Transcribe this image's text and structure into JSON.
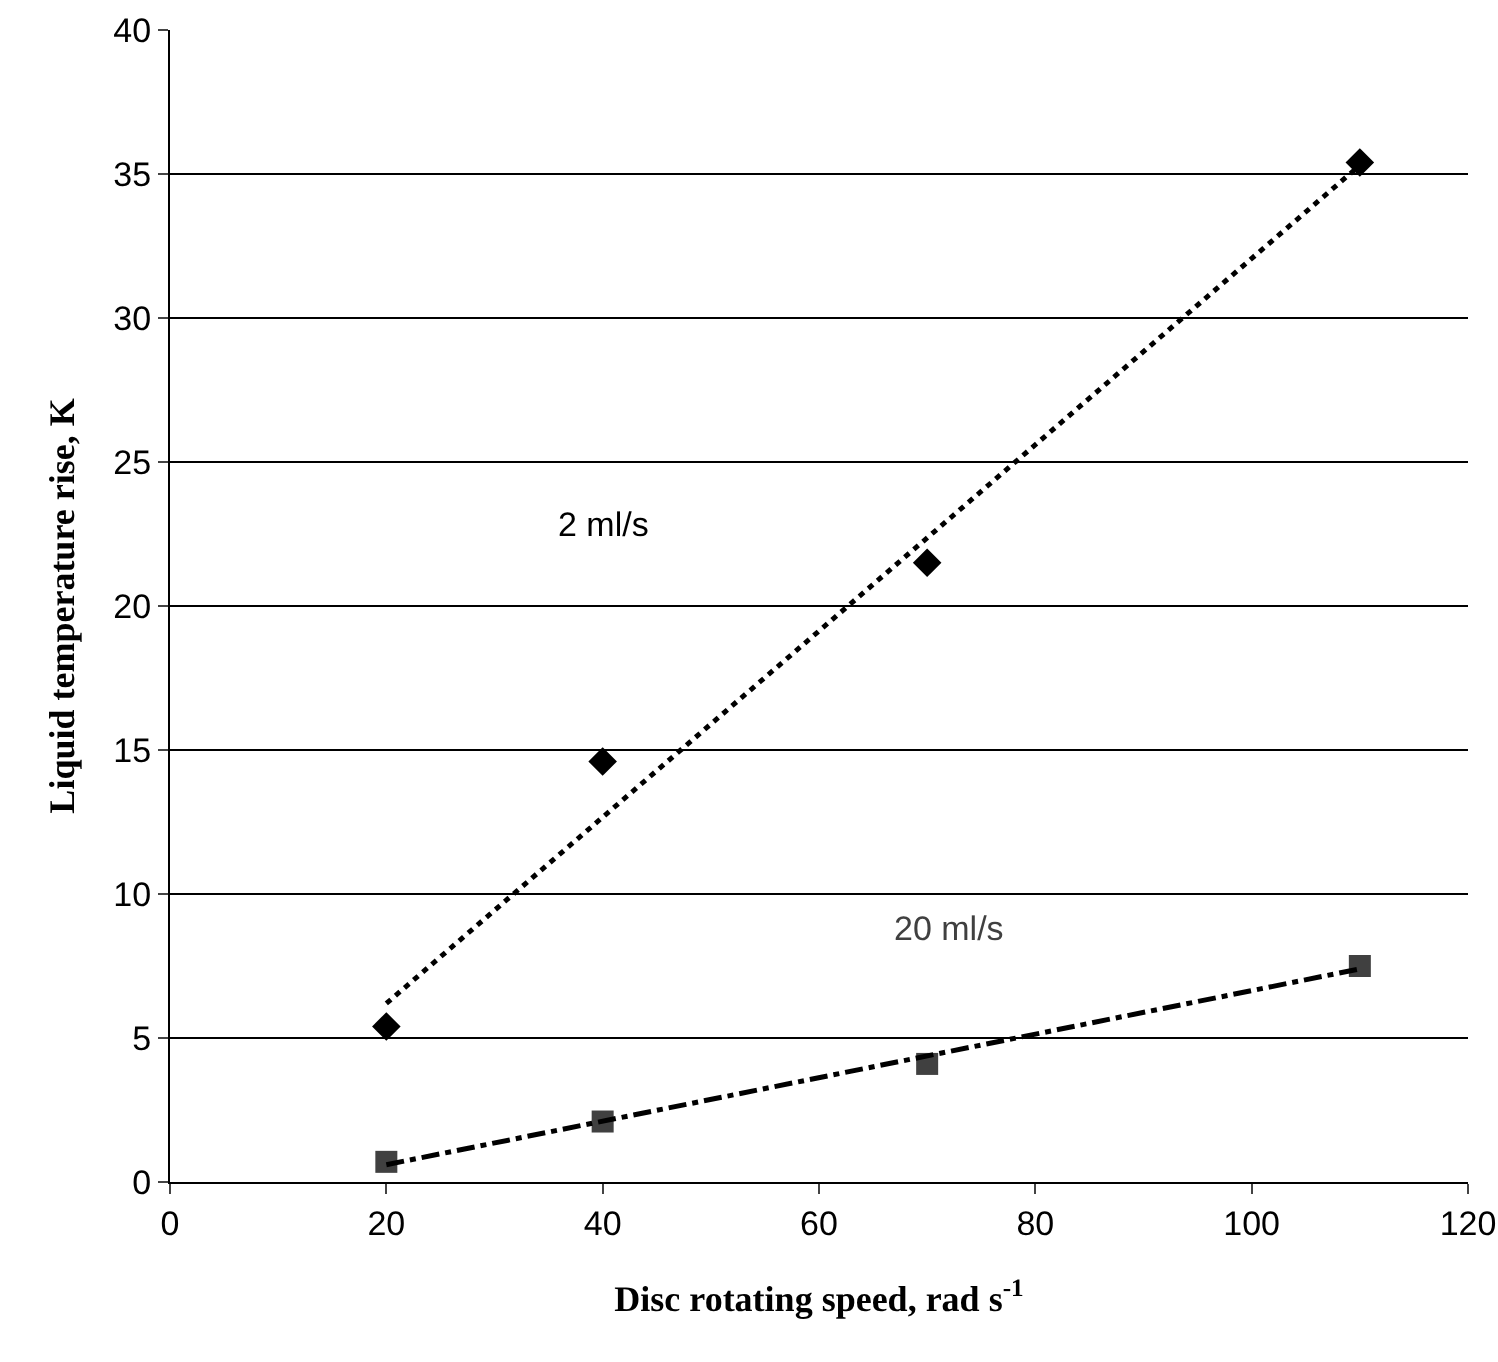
{
  "chart_data": {
    "type": "scatter",
    "xlabel": "Disc rotating speed, rad s$^{-1}$",
    "ylabel": "Liquid temperature rise, K",
    "xlim": [
      0,
      120
    ],
    "xticks": [
      0,
      20,
      40,
      60,
      80,
      100,
      120
    ],
    "ylim": [
      0,
      40
    ],
    "yticks": [
      0,
      5,
      10,
      15,
      20,
      25,
      30,
      35,
      40
    ],
    "grid": "y",
    "legend": false,
    "series": [
      {
        "name": "2 ml/s",
        "marker": "diamond",
        "color": "#000000",
        "x": [
          20,
          40,
          70,
          110
        ],
        "values": [
          5.4,
          14.6,
          21.5,
          35.4
        ]
      },
      {
        "name": "20 ml/s",
        "marker": "square",
        "color": "#404040",
        "x": [
          20,
          40,
          70,
          110
        ],
        "values": [
          0.7,
          2.1,
          4.1,
          7.5
        ]
      },
      {
        "type": "line",
        "marker": "none",
        "line_style": "dotted",
        "color": "#000000",
        "x": [
          20,
          110
        ],
        "values": [
          6.2,
          35.3
        ]
      },
      {
        "type": "line",
        "marker": "none",
        "line_style": "dashed",
        "color": "#000000",
        "x": [
          20,
          110
        ],
        "values": [
          0.6,
          7.4
        ]
      }
    ]
  }
}
